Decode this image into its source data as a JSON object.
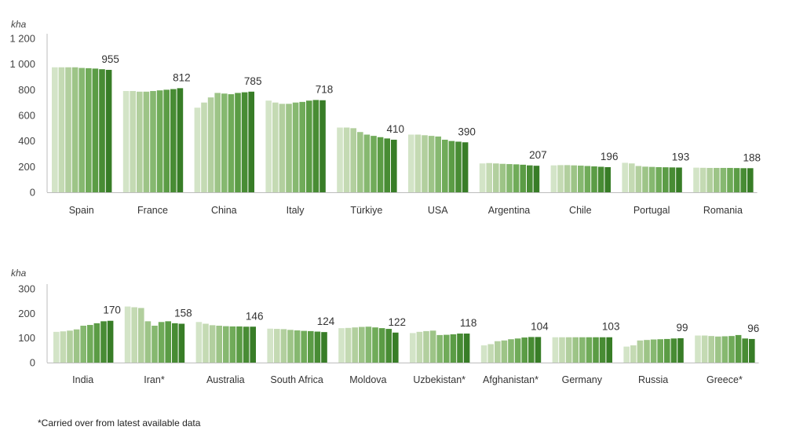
{
  "footnote": "*Carried over from latest available data",
  "chart_data": [
    {
      "type": "bar",
      "unit_label": "kha",
      "ylim": [
        0,
        1200
      ],
      "yticks": [
        "0",
        "200",
        "400",
        "600",
        "800",
        "1 000",
        "1 200"
      ],
      "ytick_values": [
        0,
        200,
        400,
        600,
        800,
        1000,
        1200
      ],
      "grid": false,
      "bar_colors": [
        "#d3e4c7",
        "#c4dab3",
        "#b2cf9e",
        "#9dc487",
        "#86b870",
        "#70ab59",
        "#5b9c45",
        "#488c34",
        "#387d27"
      ],
      "categories": [
        "Spain",
        "France",
        "China",
        "Italy",
        "Türkiye",
        "USA",
        "Argentina",
        "Chile",
        "Portugal",
        "Romania"
      ],
      "labels": [
        "955",
        "812",
        "785",
        "718",
        "410",
        "390",
        "207",
        "196",
        "193",
        "188"
      ],
      "values": [
        [
          975,
          975,
          975,
          975,
          970,
          968,
          965,
          960,
          955
        ],
        [
          790,
          790,
          785,
          785,
          790,
          795,
          800,
          805,
          812
        ],
        [
          660,
          700,
          740,
          775,
          770,
          765,
          775,
          780,
          785
        ],
        [
          715,
          700,
          690,
          690,
          700,
          705,
          715,
          720,
          718
        ],
        [
          505,
          505,
          500,
          470,
          450,
          440,
          430,
          420,
          410
        ],
        [
          450,
          450,
          445,
          440,
          435,
          410,
          400,
          395,
          390
        ],
        [
          225,
          228,
          225,
          222,
          220,
          218,
          215,
          210,
          207
        ],
        [
          210,
          212,
          212,
          210,
          208,
          205,
          202,
          199,
          196
        ],
        [
          230,
          225,
          205,
          200,
          198,
          196,
          195,
          194,
          193
        ],
        [
          192,
          191,
          190,
          190,
          190,
          190,
          189,
          188,
          188
        ]
      ]
    },
    {
      "type": "bar",
      "unit_label": "kha",
      "ylim": [
        0,
        300
      ],
      "yticks": [
        "0",
        "100",
        "200",
        "300"
      ],
      "ytick_values": [
        0,
        100,
        200,
        300
      ],
      "grid": false,
      "bar_colors": [
        "#d3e4c7",
        "#c4dab3",
        "#b2cf9e",
        "#9dc487",
        "#86b870",
        "#70ab59",
        "#5b9c45",
        "#488c34",
        "#387d27"
      ],
      "categories": [
        "India",
        "Iran*",
        "Australia",
        "South Africa",
        "Moldova",
        "Uzbekistan*",
        "Afghanistan*",
        "Germany",
        "Russia",
        "Greece*"
      ],
      "labels": [
        "170",
        "158",
        "146",
        "124",
        "122",
        "118",
        "104",
        "103",
        "99",
        "96"
      ],
      "values": [
        [
          125,
          127,
          130,
          135,
          150,
          153,
          160,
          168,
          170
        ],
        [
          228,
          225,
          222,
          168,
          150,
          165,
          168,
          160,
          158
        ],
        [
          165,
          158,
          152,
          150,
          148,
          147,
          147,
          146,
          146
        ],
        [
          138,
          137,
          136,
          133,
          131,
          129,
          128,
          126,
          124
        ],
        [
          140,
          141,
          143,
          145,
          146,
          143,
          140,
          137,
          122
        ],
        [
          120,
          125,
          128,
          130,
          112,
          113,
          115,
          118,
          118
        ],
        [
          70,
          75,
          87,
          90,
          95,
          98,
          102,
          104,
          104
        ],
        [
          103,
          103,
          103,
          103,
          103,
          103,
          103,
          103,
          103
        ],
        [
          65,
          70,
          90,
          92,
          94,
          95,
          96,
          98,
          99
        ],
        [
          110,
          110,
          108,
          106,
          107,
          108,
          112,
          98,
          96
        ]
      ]
    }
  ]
}
